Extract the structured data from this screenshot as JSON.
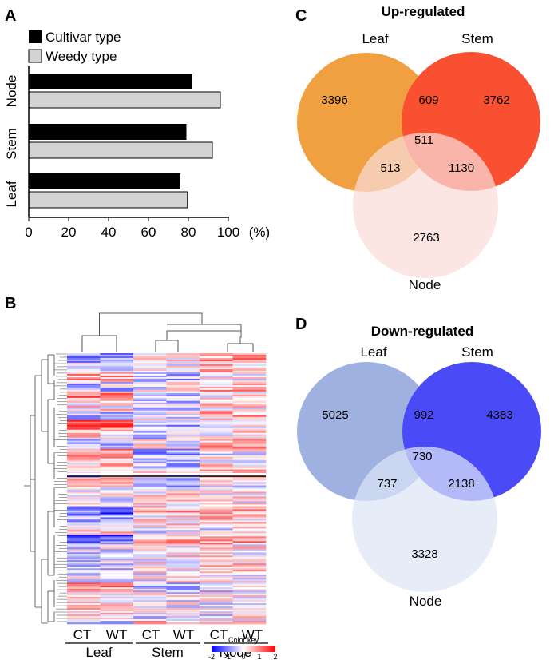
{
  "panels": {
    "a": "A",
    "b": "B",
    "c": "C",
    "d": "D"
  },
  "chart_data": [
    {
      "type": "bar",
      "orientation": "horizontal",
      "categories": [
        "Node",
        "Stem",
        "Leaf"
      ],
      "series": [
        {
          "name": "Cultivar type",
          "color": "#000000",
          "values": [
            82,
            79,
            76
          ]
        },
        {
          "name": "Weedy type",
          "color": "#d3d3d3",
          "values": [
            96,
            92,
            79.5
          ]
        }
      ],
      "xlim": [
        0,
        100
      ],
      "xticks": [
        "0",
        "20",
        "40",
        "60",
        "80",
        "100"
      ],
      "xunit": "(%)",
      "title": "",
      "xlabel": "",
      "ylabel": ""
    },
    {
      "type": "heatmap",
      "columns": [
        "CT",
        "WT",
        "CT",
        "WT",
        "CT",
        "WT"
      ],
      "groups": [
        "Leaf",
        "Stem",
        "Node"
      ],
      "color_key": {
        "title": "Color key",
        "ticks": [
          "-2",
          "-1",
          "0",
          "1",
          "2"
        ],
        "low_color": "#0000ff",
        "mid_color": "#ffffff",
        "high_color": "#ff0000"
      }
    },
    {
      "type": "venn",
      "title": "Up-regulated",
      "sets": [
        "Leaf",
        "Stem",
        "Node"
      ],
      "colors": [
        "#f0a040",
        "#f85030",
        "#fadcd8"
      ],
      "regions": {
        "leaf_only": "3396",
        "stem_only": "3762",
        "node_only": "2763",
        "leaf_stem": "609",
        "leaf_node": "513",
        "stem_node": "1130",
        "all": "511"
      }
    },
    {
      "type": "venn",
      "title": "Down-regulated",
      "sets": [
        "Leaf",
        "Stem",
        "Node"
      ],
      "colors": [
        "#9fb1e0",
        "#4a4af6",
        "#dde6f6"
      ],
      "regions": {
        "leaf_only": "5025",
        "stem_only": "4383",
        "node_only": "3328",
        "leaf_stem": "992",
        "leaf_node": "737",
        "stem_node": "2138",
        "all": "730"
      }
    }
  ]
}
